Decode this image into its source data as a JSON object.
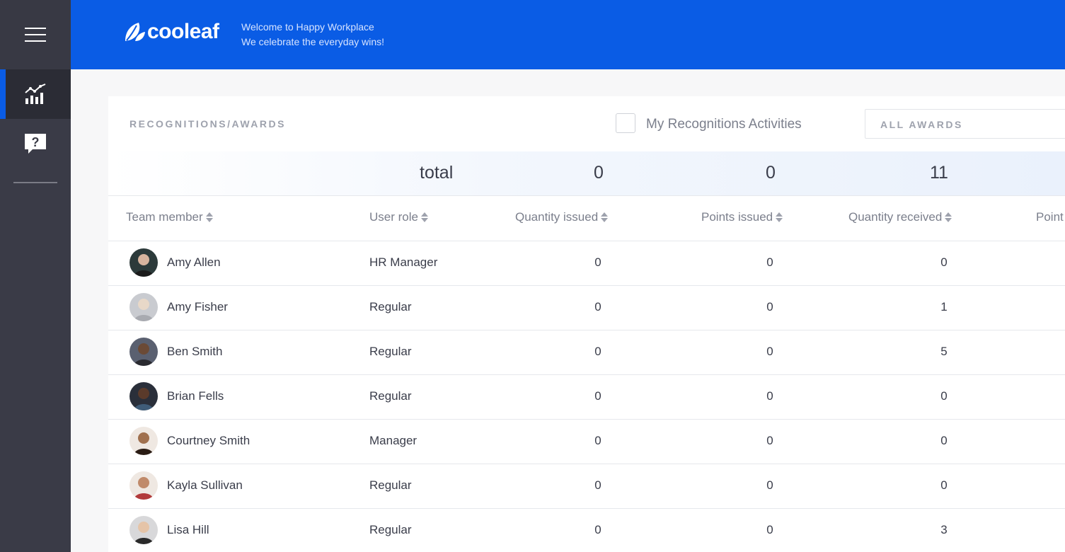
{
  "sidebar": {
    "menu_icon": "hamburger-menu-icon",
    "items": [
      {
        "name": "analytics",
        "icon": "analytics-chart-icon",
        "active": true
      },
      {
        "name": "help",
        "icon": "help-question-icon",
        "active": false
      }
    ]
  },
  "header": {
    "brand": "cooleaf",
    "tagline_line1": "Welcome to Happy Workplace",
    "tagline_line2": "We celebrate the everyday wins!"
  },
  "panel": {
    "title": "RECOGNITIONS/AWARDS",
    "checkbox_label": "My Recognitions Activities",
    "award_filter": "ALL AWARDS"
  },
  "totals": {
    "label": "total",
    "quantity_issued": "0",
    "points_issued": "0",
    "quantity_received": "11"
  },
  "columns": [
    "Team member",
    "User role",
    "Quantity issued",
    "Points issued",
    "Quantity received",
    "Point"
  ],
  "rows": [
    {
      "name": "Amy Allen",
      "role": "HR Manager",
      "quantity_issued": "0",
      "points_issued": "0",
      "quantity_received": "0"
    },
    {
      "name": "Amy Fisher",
      "role": "Regular",
      "quantity_issued": "0",
      "points_issued": "0",
      "quantity_received": "1"
    },
    {
      "name": "Ben Smith",
      "role": "Regular",
      "quantity_issued": "0",
      "points_issued": "0",
      "quantity_received": "5"
    },
    {
      "name": "Brian Fells",
      "role": "Regular",
      "quantity_issued": "0",
      "points_issued": "0",
      "quantity_received": "0"
    },
    {
      "name": "Courtney Smith",
      "role": "Manager",
      "quantity_issued": "0",
      "points_issued": "0",
      "quantity_received": "0"
    },
    {
      "name": "Kayla Sullivan",
      "role": "Regular",
      "quantity_issued": "0",
      "points_issued": "0",
      "quantity_received": "0"
    },
    {
      "name": "Lisa Hill",
      "role": "Regular",
      "quantity_issued": "0",
      "points_issued": "0",
      "quantity_received": "3"
    }
  ],
  "colors": {
    "brand_blue": "#0a5ce5",
    "sidebar": "#3a3b47"
  }
}
